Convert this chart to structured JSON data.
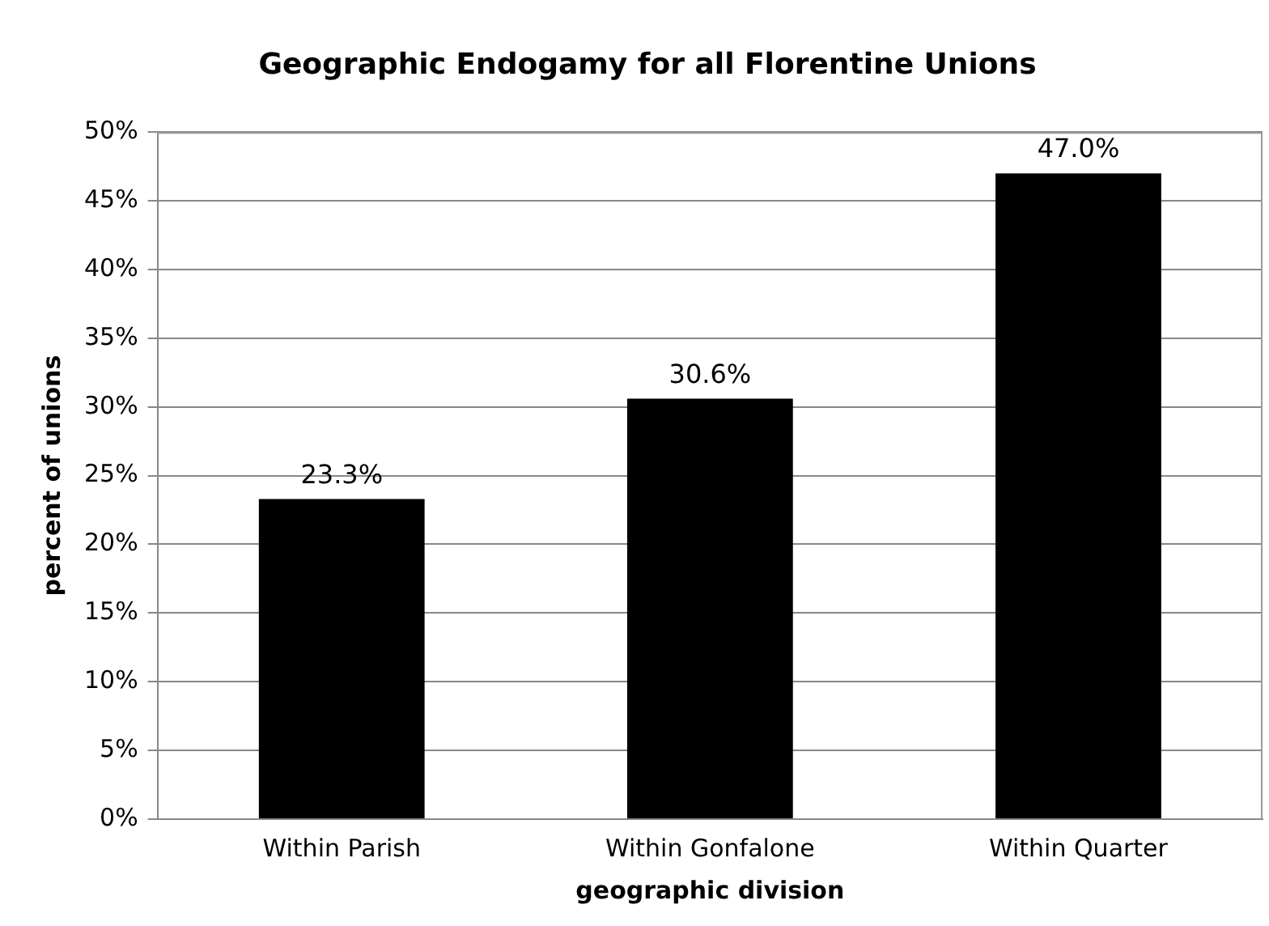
{
  "chart_data": {
    "type": "bar",
    "title": "Geographic Endogamy for all Florentine Unions",
    "xlabel": "geographic division",
    "ylabel": "percent of unions",
    "categories": [
      "Within Parish",
      "Within Gonfalone",
      "Within Quarter"
    ],
    "values": [
      23.3,
      30.6,
      47.0
    ],
    "color": "#000000",
    "value_labels": [
      "23.3%",
      "30.6%",
      "47.0%"
    ],
    "ylim": [
      0,
      50
    ],
    "yticks": [
      {
        "value": 0,
        "label": "0%"
      },
      {
        "value": 5,
        "label": "5%"
      },
      {
        "value": 10,
        "label": "10%"
      },
      {
        "value": 15,
        "label": "15%"
      },
      {
        "value": 20,
        "label": "20%"
      },
      {
        "value": 25,
        "label": "25%"
      },
      {
        "value": 30,
        "label": "30%"
      },
      {
        "value": 35,
        "label": "35%"
      },
      {
        "value": 40,
        "label": "40%"
      },
      {
        "value": 45,
        "label": "45%"
      },
      {
        "value": 50,
        "label": "50%"
      }
    ],
    "grid": "y",
    "legend": false
  }
}
